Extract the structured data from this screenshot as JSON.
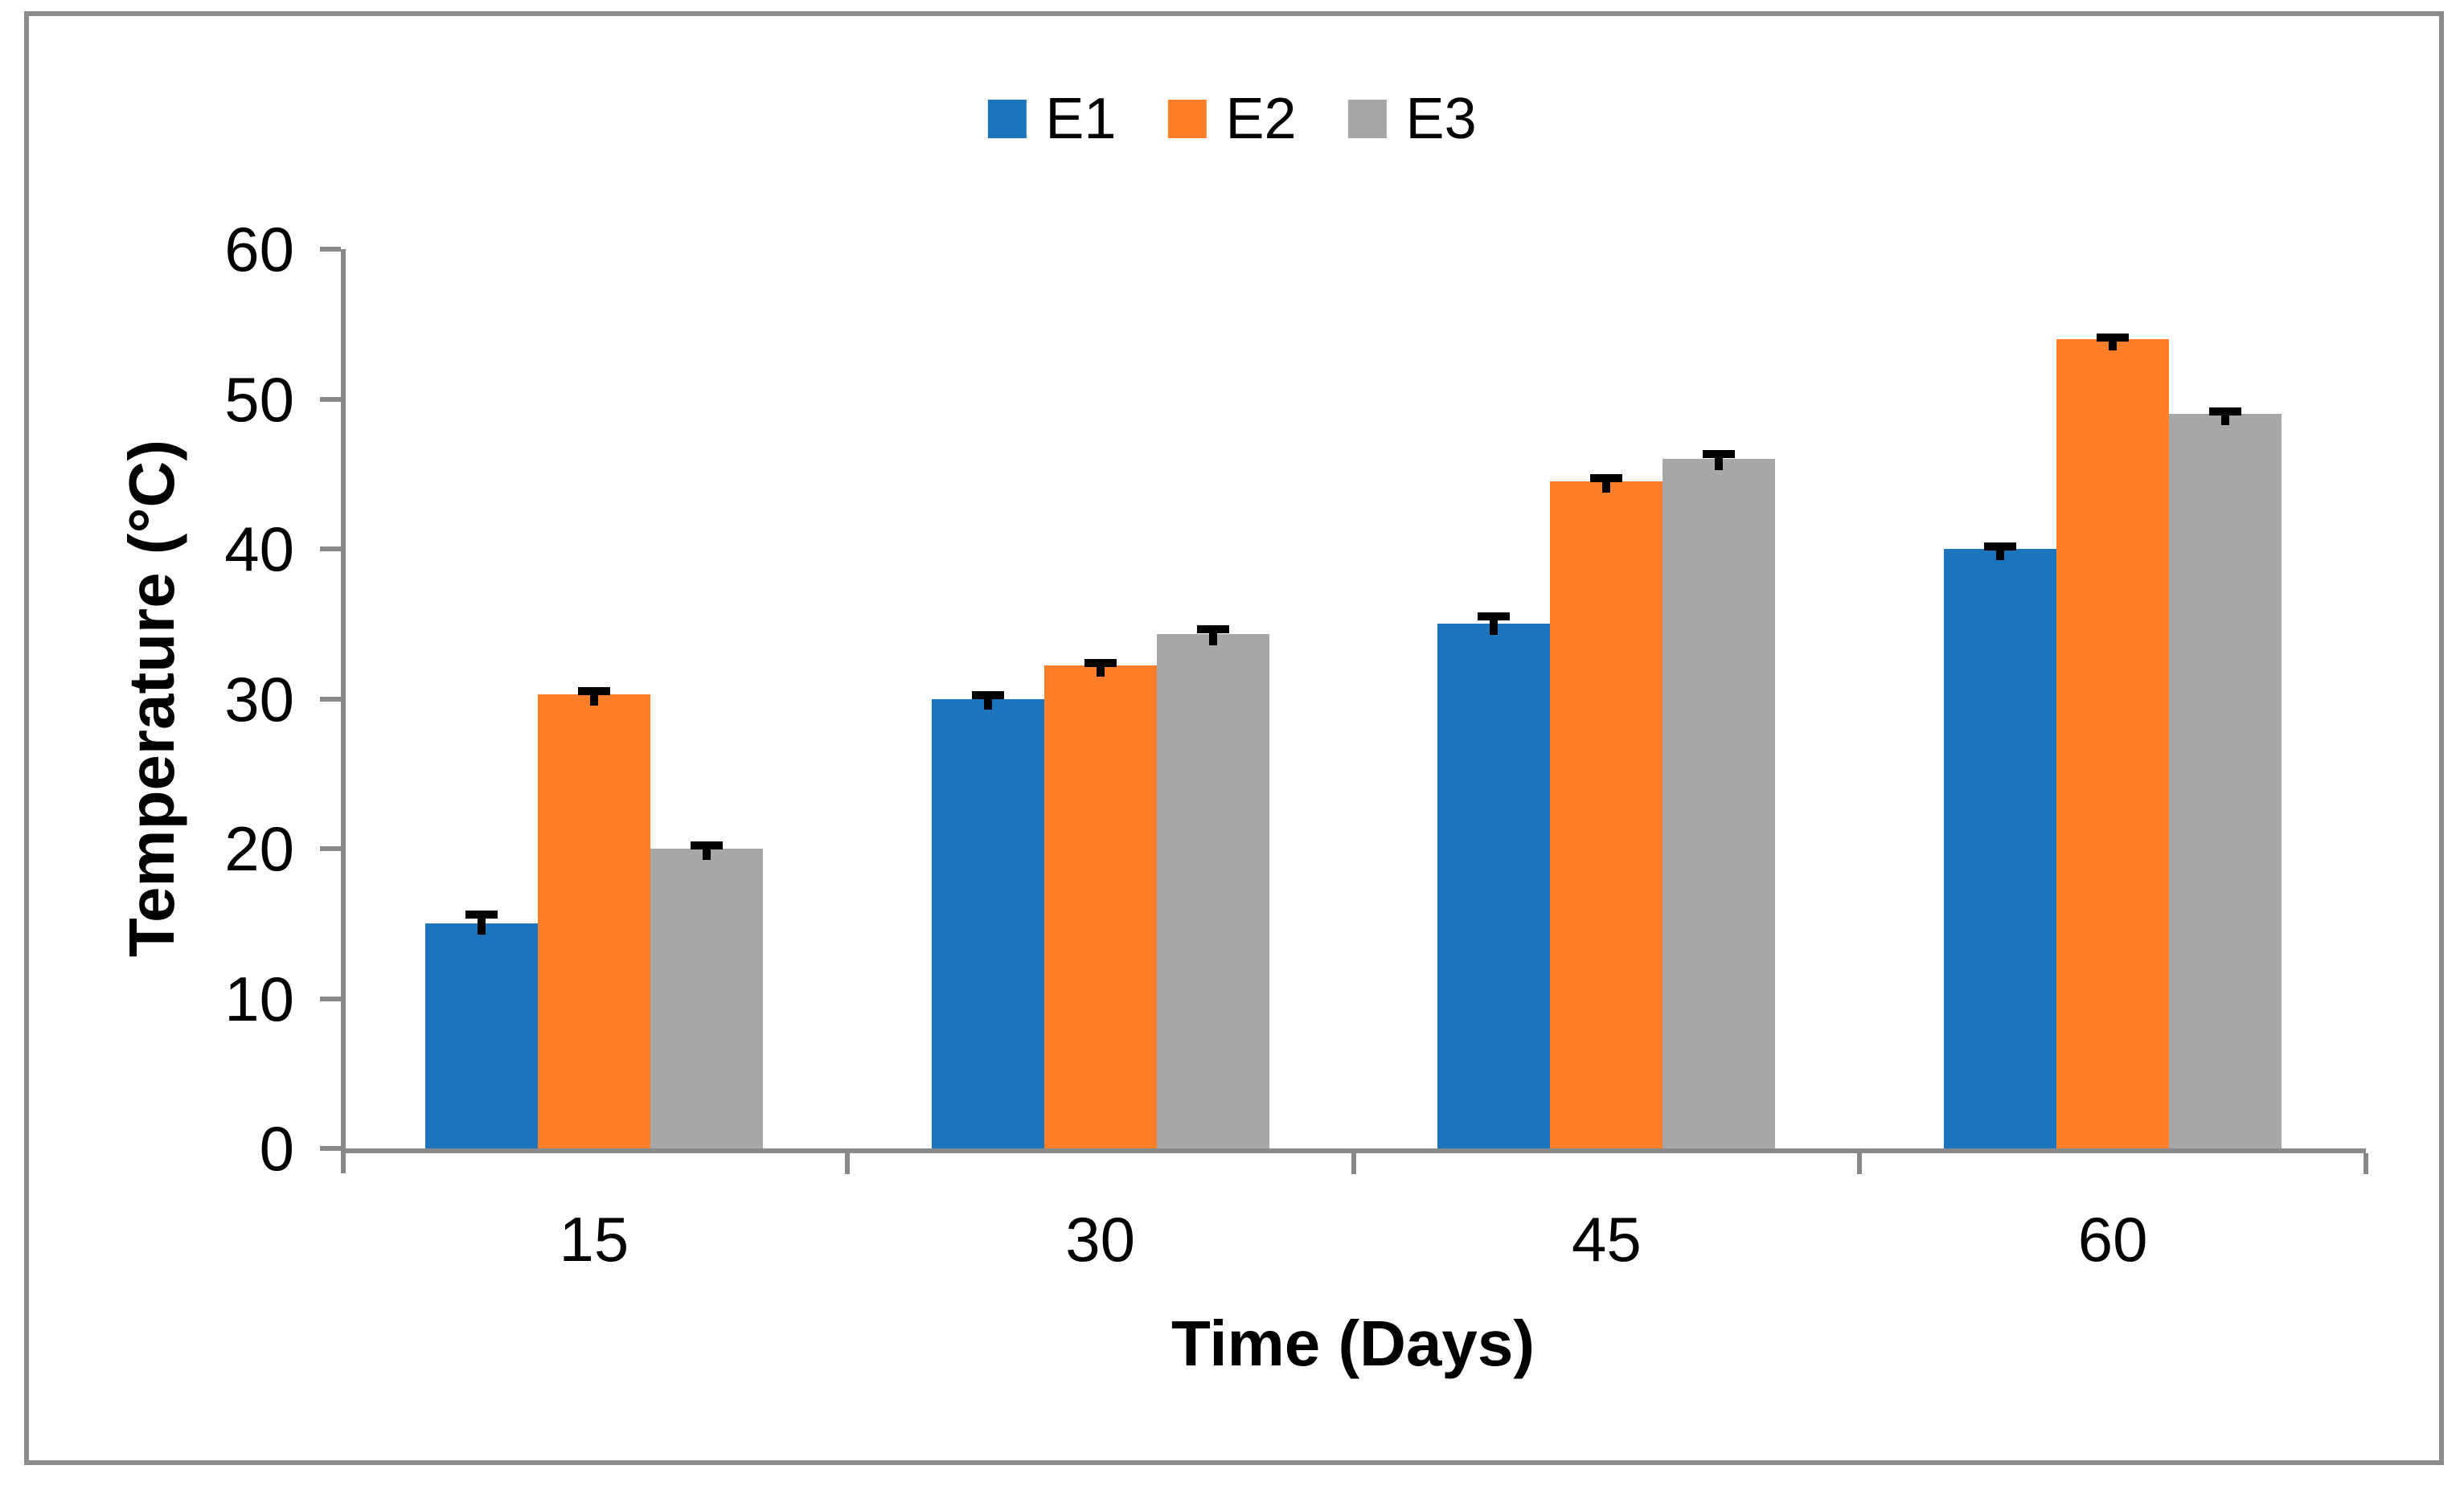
{
  "chart_data": {
    "type": "bar",
    "title": "",
    "categories": [
      "15",
      "30",
      "45",
      "60"
    ],
    "series": [
      {
        "name": "E1",
        "color": "#1C75BC",
        "values": [
          15,
          30,
          35,
          40
        ],
        "errors_plus": [
          0.6,
          0.25,
          0.5,
          0.15
        ]
      },
      {
        "name": "E2",
        "color": "#FF7F2A",
        "values": [
          30.3,
          32.2,
          44.5,
          54
        ],
        "errors_plus": [
          0.2,
          0.2,
          0.2,
          0.1
        ]
      },
      {
        "name": "E3",
        "color": "#A7A7A7",
        "values": [
          20,
          34.3,
          46,
          49
        ],
        "errors_plus": [
          0.2,
          0.35,
          0.35,
          0.15
        ]
      }
    ],
    "xlabel": "Time (Days)",
    "ylabel": "Temperature (°C)",
    "ylim": [
      0,
      60
    ],
    "y_ticks": [
      0,
      10,
      20,
      30,
      40,
      50,
      60
    ],
    "y_tick_labels": [
      "0",
      "10",
      "20",
      "30",
      "40",
      "50",
      "60"
    ],
    "grid": false,
    "legend_position": "top-center",
    "error_bar_color": "#000000",
    "axis_color": "#898989",
    "frame_color": "#8C8C8C"
  }
}
